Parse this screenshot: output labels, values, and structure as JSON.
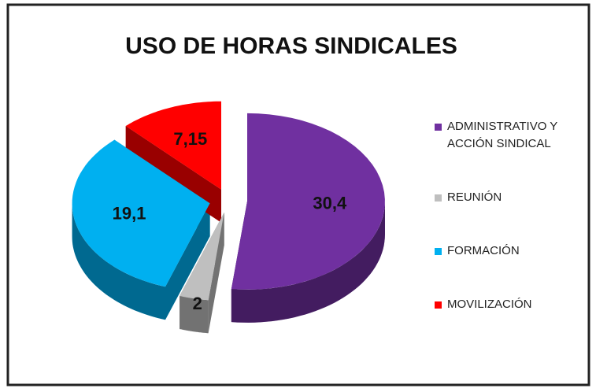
{
  "chart_data": {
    "type": "pie",
    "title": "USO DE HORAS SINDICALES",
    "categories": [
      "ADMINISTRATIVO Y ACCIÓN SINDICAL",
      "REUNIÓN",
      "FORMACIÓN",
      "MOVILIZACIÓN"
    ],
    "values": [
      30.4,
      2,
      19.1,
      7.15
    ],
    "value_labels": [
      "30,4",
      "2",
      "19,1",
      "7,15"
    ],
    "colors": [
      "#7030a0",
      "#bfbfbf",
      "#00b0f0",
      "#ff0000"
    ],
    "legend": "right"
  }
}
